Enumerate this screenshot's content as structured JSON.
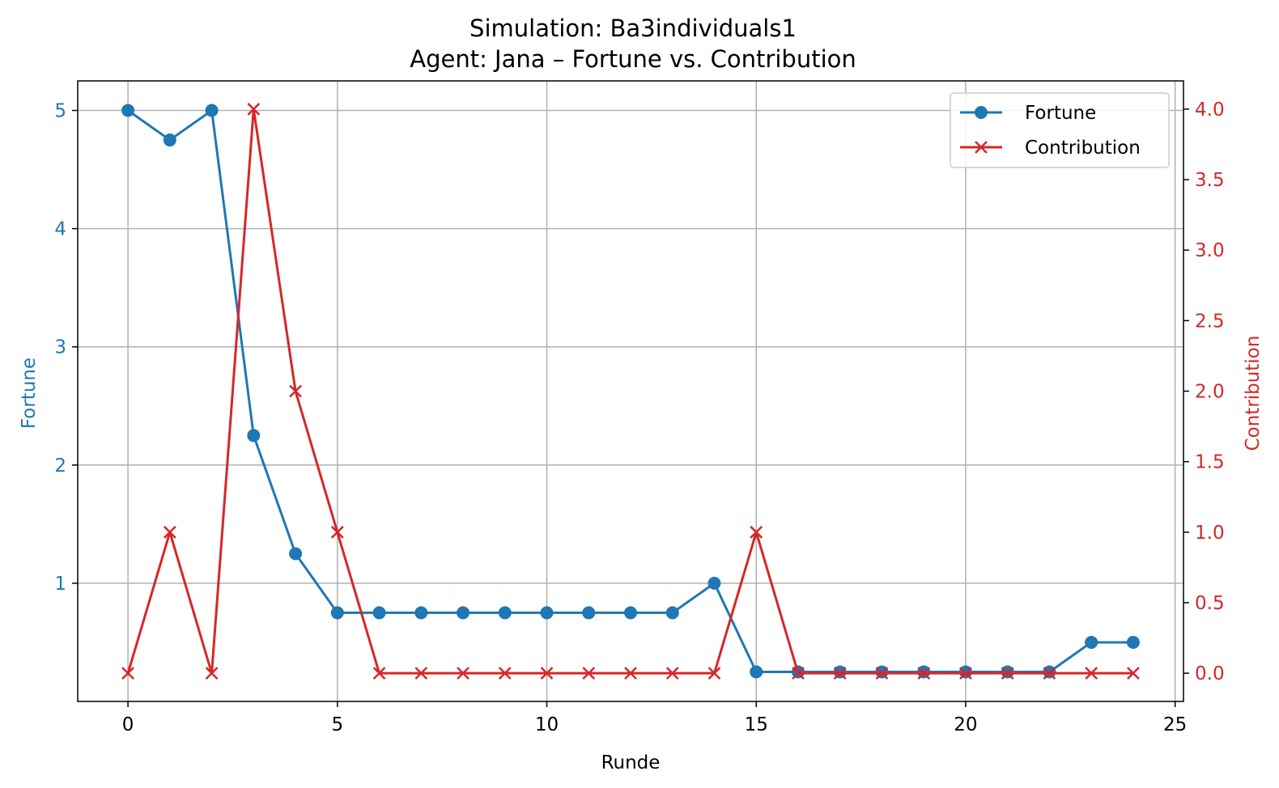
{
  "chart_data": {
    "type": "line",
    "title_line1": "Simulation: Ba3individuals1",
    "title_line2": "Agent: Jana – Fortune vs. Contribution",
    "xlabel": "Runde",
    "ylabel_left": "Fortune",
    "ylabel_right": "Contribution",
    "x": [
      0,
      1,
      2,
      3,
      4,
      5,
      6,
      7,
      8,
      9,
      10,
      11,
      12,
      13,
      14,
      15,
      16,
      17,
      18,
      19,
      20,
      21,
      22,
      23,
      24
    ],
    "xlim": [
      -1.2,
      25.2
    ],
    "x_ticks": [
      0,
      5,
      10,
      15,
      20,
      25
    ],
    "x_tick_labels": [
      "0",
      "5",
      "10",
      "15",
      "20",
      "25"
    ],
    "ylim_left": [
      0.0,
      5.25
    ],
    "y_ticks_left": [
      1,
      2,
      3,
      4,
      5
    ],
    "y_tick_labels_left": [
      "1",
      "2",
      "3",
      "4",
      "5"
    ],
    "ylim_right": [
      -0.2,
      4.2
    ],
    "y_ticks_right": [
      0.0,
      0.5,
      1.0,
      1.5,
      2.0,
      2.5,
      3.0,
      3.5,
      4.0
    ],
    "y_tick_labels_right": [
      "0.0",
      "0.5",
      "1.0",
      "1.5",
      "2.0",
      "2.5",
      "3.0",
      "3.5",
      "4.0"
    ],
    "grid": true,
    "legend_position": "top-right",
    "series": [
      {
        "name": "Fortune",
        "axis": "left",
        "marker": "circle",
        "color": "#1f77b4",
        "values": [
          5.0,
          4.75,
          5.0,
          2.25,
          1.25,
          0.75,
          0.75,
          0.75,
          0.75,
          0.75,
          0.75,
          0.75,
          0.75,
          0.75,
          1.0,
          0.25,
          0.25,
          0.25,
          0.25,
          0.25,
          0.25,
          0.25,
          0.25,
          0.5,
          0.5
        ]
      },
      {
        "name": "Contribution",
        "axis": "right",
        "marker": "x",
        "color": "#d62728",
        "values": [
          0,
          1,
          0,
          4,
          2,
          1,
          0,
          0,
          0,
          0,
          0,
          0,
          0,
          0,
          0,
          1,
          0,
          0,
          0,
          0,
          0,
          0,
          0,
          0,
          0
        ]
      }
    ]
  }
}
